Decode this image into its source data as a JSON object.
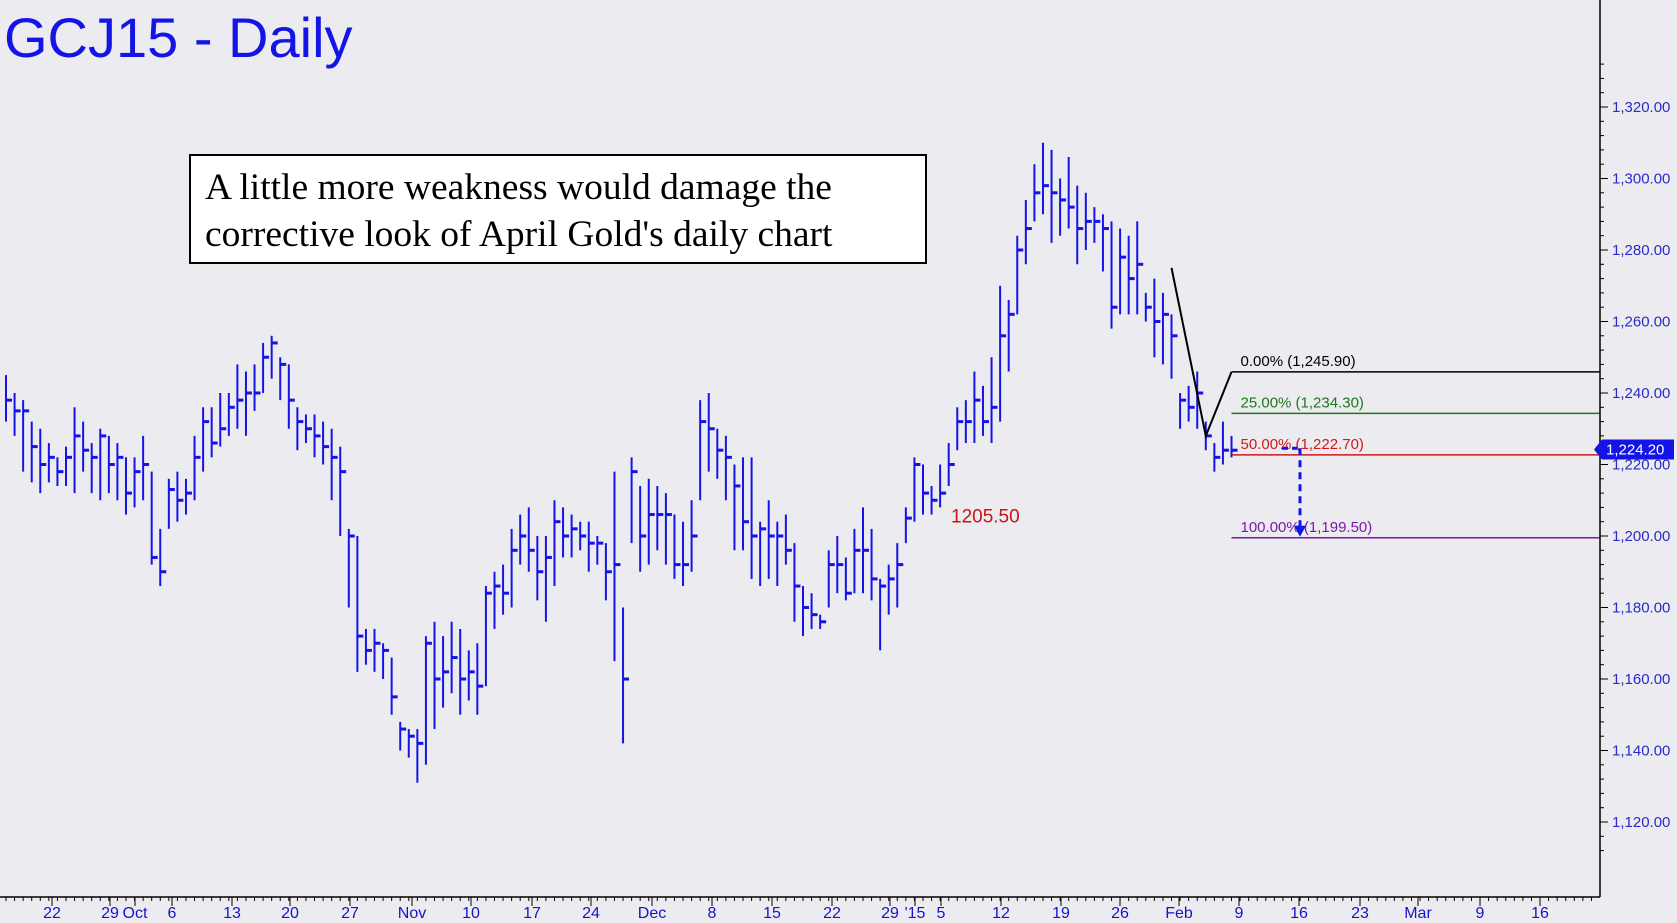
{
  "title": "GCJ15 - Daily",
  "annotation": {
    "line1": "A little more weakness would damage the",
    "line2": "corrective look of April Gold's daily chart"
  },
  "last_price": "1,224.20",
  "low_label": "1205.50",
  "colors": {
    "bars": "#1414e6",
    "title": "#1414e6",
    "fib_0": "#000000",
    "fib_25": "#1a7a1a",
    "fib_50": "#d01818",
    "fib_100": "#7a1aa8",
    "low_label": "#c81414",
    "background": "#ececf0"
  },
  "chart_data": {
    "type": "ohlc",
    "title": "GCJ15 - Daily",
    "y_axis": {
      "position": "right",
      "range": [
        1110,
        1335
      ],
      "ticks": [
        "1,320.00",
        "1,300.00",
        "1,280.00",
        "1,260.00",
        "1,240.00",
        "1,220.00",
        "1,200.00",
        "1,180.00",
        "1,160.00",
        "1,140.00",
        "1,120.00"
      ]
    },
    "x_axis_labels": [
      "22",
      "29",
      "Oct",
      "6",
      "13",
      "20",
      "27",
      "Nov",
      "10",
      "17",
      "24",
      "Dec",
      "8",
      "15",
      "22",
      "29",
      "'15",
      "5",
      "12",
      "19",
      "26",
      "Feb",
      "9",
      "16",
      "23",
      "Mar",
      "9",
      "16"
    ],
    "grid": false,
    "bars_hlc": [
      [
        1245,
        1232,
        1238
      ],
      [
        1240,
        1228,
        1235
      ],
      [
        1238,
        1218,
        1235
      ],
      [
        1232,
        1215,
        1225
      ],
      [
        1230,
        1212,
        1220
      ],
      [
        1226,
        1215,
        1222
      ],
      [
        1222,
        1214,
        1218
      ],
      [
        1225,
        1214,
        1222
      ],
      [
        1236,
        1212,
        1228
      ],
      [
        1232,
        1218,
        1224
      ],
      [
        1226,
        1212,
        1222
      ],
      [
        1230,
        1210,
        1228
      ],
      [
        1228,
        1212,
        1220
      ],
      [
        1226,
        1210,
        1222
      ],
      [
        1222,
        1206,
        1212
      ],
      [
        1222,
        1208,
        1218
      ],
      [
        1228,
        1210,
        1220
      ],
      [
        1218,
        1192,
        1194
      ],
      [
        1202,
        1186,
        1190
      ],
      [
        1216,
        1202,
        1213
      ],
      [
        1218,
        1204,
        1210
      ],
      [
        1216,
        1206,
        1212
      ],
      [
        1228,
        1210,
        1222
      ],
      [
        1236,
        1218,
        1232
      ],
      [
        1236,
        1222,
        1226
      ],
      [
        1240,
        1225,
        1230
      ],
      [
        1240,
        1228,
        1236
      ],
      [
        1248,
        1230,
        1238
      ],
      [
        1246,
        1228,
        1240
      ],
      [
        1248,
        1235,
        1240
      ],
      [
        1254,
        1240,
        1250
      ],
      [
        1256,
        1244,
        1254
      ],
      [
        1250,
        1238,
        1248
      ],
      [
        1248,
        1230,
        1238
      ],
      [
        1236,
        1224,
        1232
      ],
      [
        1234,
        1226,
        1230
      ],
      [
        1234,
        1222,
        1228
      ],
      [
        1232,
        1220,
        1225
      ],
      [
        1230,
        1210,
        1222
      ],
      [
        1225,
        1200,
        1218
      ],
      [
        1202,
        1180,
        1200
      ],
      [
        1200,
        1162,
        1172
      ],
      [
        1174,
        1164,
        1168
      ],
      [
        1174,
        1162,
        1170
      ],
      [
        1170,
        1160,
        1168
      ],
      [
        1166,
        1150,
        1155
      ],
      [
        1148,
        1140,
        1146
      ],
      [
        1146,
        1138,
        1144
      ],
      [
        1146,
        1131,
        1142
      ],
      [
        1172,
        1136,
        1170
      ],
      [
        1176,
        1146,
        1160
      ],
      [
        1172,
        1152,
        1162
      ],
      [
        1176,
        1156,
        1166
      ],
      [
        1174,
        1150,
        1160
      ],
      [
        1168,
        1154,
        1162
      ],
      [
        1170,
        1150,
        1158
      ],
      [
        1186,
        1158,
        1184
      ],
      [
        1190,
        1174,
        1186
      ],
      [
        1192,
        1178,
        1184
      ],
      [
        1202,
        1180,
        1196
      ],
      [
        1206,
        1192,
        1200
      ],
      [
        1208,
        1190,
        1196
      ],
      [
        1200,
        1182,
        1190
      ],
      [
        1200,
        1176,
        1194
      ],
      [
        1210,
        1186,
        1204
      ],
      [
        1208,
        1194,
        1200
      ],
      [
        1206,
        1194,
        1202
      ],
      [
        1204,
        1196,
        1200
      ],
      [
        1204,
        1190,
        1198
      ],
      [
        1200,
        1192,
        1198
      ],
      [
        1198,
        1182,
        1190
      ],
      [
        1218,
        1165,
        1192
      ],
      [
        1180,
        1142,
        1160
      ],
      [
        1222,
        1198,
        1218
      ],
      [
        1214,
        1190,
        1200
      ],
      [
        1216,
        1192,
        1206
      ],
      [
        1214,
        1196,
        1206
      ],
      [
        1212,
        1192,
        1206
      ],
      [
        1206,
        1188,
        1192
      ],
      [
        1204,
        1186,
        1192
      ],
      [
        1210,
        1190,
        1200
      ],
      [
        1238,
        1210,
        1232
      ],
      [
        1240,
        1218,
        1230
      ],
      [
        1230,
        1216,
        1224
      ],
      [
        1228,
        1210,
        1222
      ],
      [
        1220,
        1196,
        1214
      ],
      [
        1222,
        1196,
        1204
      ],
      [
        1222,
        1188,
        1200
      ],
      [
        1204,
        1186,
        1202
      ],
      [
        1210,
        1188,
        1200
      ],
      [
        1204,
        1186,
        1200
      ],
      [
        1206,
        1192,
        1196
      ],
      [
        1198,
        1176,
        1186
      ],
      [
        1186,
        1172,
        1180
      ],
      [
        1184,
        1174,
        1178
      ],
      [
        1178,
        1174,
        1176
      ],
      [
        1196,
        1180,
        1192
      ],
      [
        1200,
        1184,
        1192
      ],
      [
        1194,
        1182,
        1184
      ],
      [
        1202,
        1184,
        1196
      ],
      [
        1208,
        1184,
        1196
      ],
      [
        1202,
        1182,
        1188
      ],
      [
        1188,
        1168,
        1186
      ],
      [
        1192,
        1178,
        1188
      ],
      [
        1198,
        1180,
        1192
      ],
      [
        1208,
        1198,
        1205
      ],
      [
        1222,
        1204,
        1220
      ],
      [
        1220,
        1206,
        1212
      ],
      [
        1214,
        1206,
        1210
      ],
      [
        1220,
        1208,
        1212
      ],
      [
        1226,
        1214,
        1220
      ],
      [
        1236,
        1224,
        1232
      ],
      [
        1238,
        1226,
        1232
      ],
      [
        1246,
        1226,
        1238
      ],
      [
        1242,
        1228,
        1232
      ],
      [
        1250,
        1226,
        1236
      ],
      [
        1270,
        1232,
        1256
      ],
      [
        1266,
        1246,
        1262
      ],
      [
        1284,
        1262,
        1280
      ],
      [
        1294,
        1276,
        1286
      ],
      [
        1304,
        1288,
        1296
      ],
      [
        1310,
        1290,
        1298
      ],
      [
        1308,
        1282,
        1296
      ],
      [
        1300,
        1284,
        1294
      ],
      [
        1306,
        1286,
        1292
      ],
      [
        1298,
        1276,
        1286
      ],
      [
        1296,
        1280,
        1288
      ],
      [
        1292,
        1282,
        1288
      ],
      [
        1290,
        1274,
        1286
      ],
      [
        1288,
        1258,
        1264
      ],
      [
        1286,
        1262,
        1278
      ],
      [
        1284,
        1262,
        1272
      ],
      [
        1288,
        1262,
        1276
      ],
      [
        1268,
        1260,
        1264
      ],
      [
        1272,
        1250,
        1260
      ],
      [
        1268,
        1248,
        1262
      ],
      [
        1262,
        1244,
        1256
      ],
      [
        1240,
        1230,
        1238
      ],
      [
        1242,
        1232,
        1236
      ],
      [
        1246,
        1230,
        1240
      ],
      [
        1232,
        1224,
        1228
      ],
      [
        1226,
        1218,
        1222
      ],
      [
        1232,
        1220,
        1224
      ],
      [
        1228,
        1222,
        1224
      ]
    ],
    "swing": {
      "high_bar": 136,
      "high": 1275,
      "low_bar": 140,
      "low": 1228,
      "end_bar": 143,
      "end": 1245.9
    },
    "fibonacci_levels": [
      {
        "label": "0.00% (1,245.90)",
        "value": 1245.9
      },
      {
        "label": "25.00% (1,234.30)",
        "value": 1234.3
      },
      {
        "label": "50.00% (1,222.70)",
        "value": 1222.7
      },
      {
        "label": "100.00% (1,199.50)",
        "value": 1199.5
      }
    ],
    "annotations": [
      {
        "text": "1205.50",
        "value": 1205.5
      }
    ],
    "projection": {
      "from": 1224,
      "to": 1199.5
    }
  }
}
